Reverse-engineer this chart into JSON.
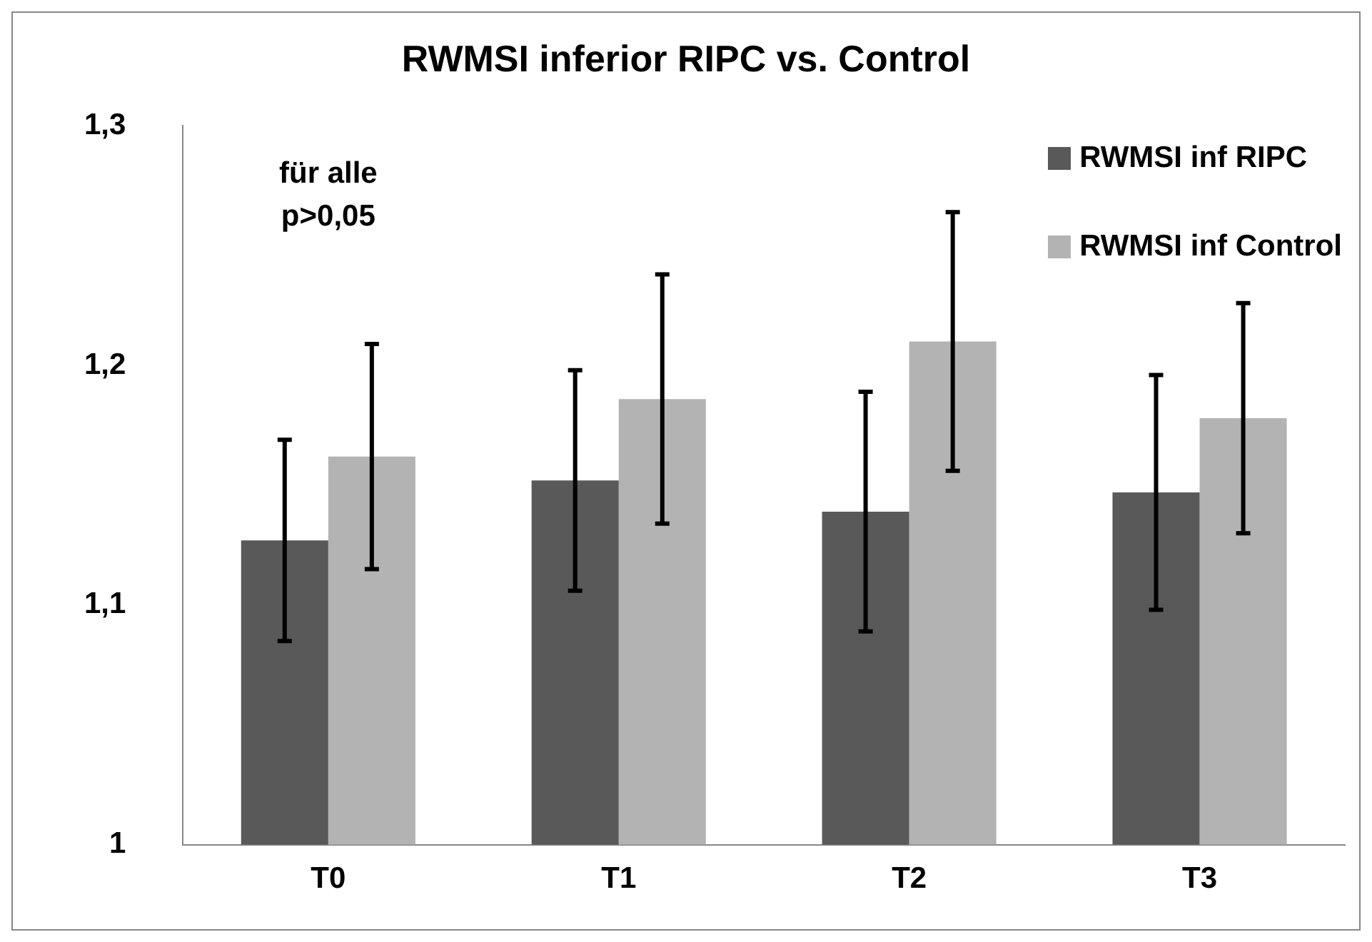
{
  "chart_data": {
    "type": "bar",
    "title": "RWMSI inferior RIPC vs. Control",
    "categories": [
      "T0",
      "T1",
      "T2",
      "T3"
    ],
    "series": [
      {
        "name": "RWMSI inf RIPC",
        "color": "#595959",
        "values": [
          1.127,
          1.152,
          1.139,
          1.147
        ],
        "errors": [
          0.042,
          0.046,
          0.05,
          0.049
        ]
      },
      {
        "name": "RWMSI inf Control",
        "color": "#b3b3b3",
        "values": [
          1.162,
          1.186,
          1.21,
          1.178
        ],
        "errors": [
          0.047,
          0.052,
          0.054,
          0.048
        ]
      }
    ],
    "ylim": [
      1,
      1.3
    ],
    "yticks": [
      {
        "value": 1,
        "label": "1"
      },
      {
        "value": 1.1,
        "label": "1,1"
      },
      {
        "value": 1.2,
        "label": "1,2"
      },
      {
        "value": 1.3,
        "label": "1,3"
      }
    ],
    "grid": false,
    "legend": "top right",
    "annotations": [
      "für alle\np>0,05"
    ]
  }
}
